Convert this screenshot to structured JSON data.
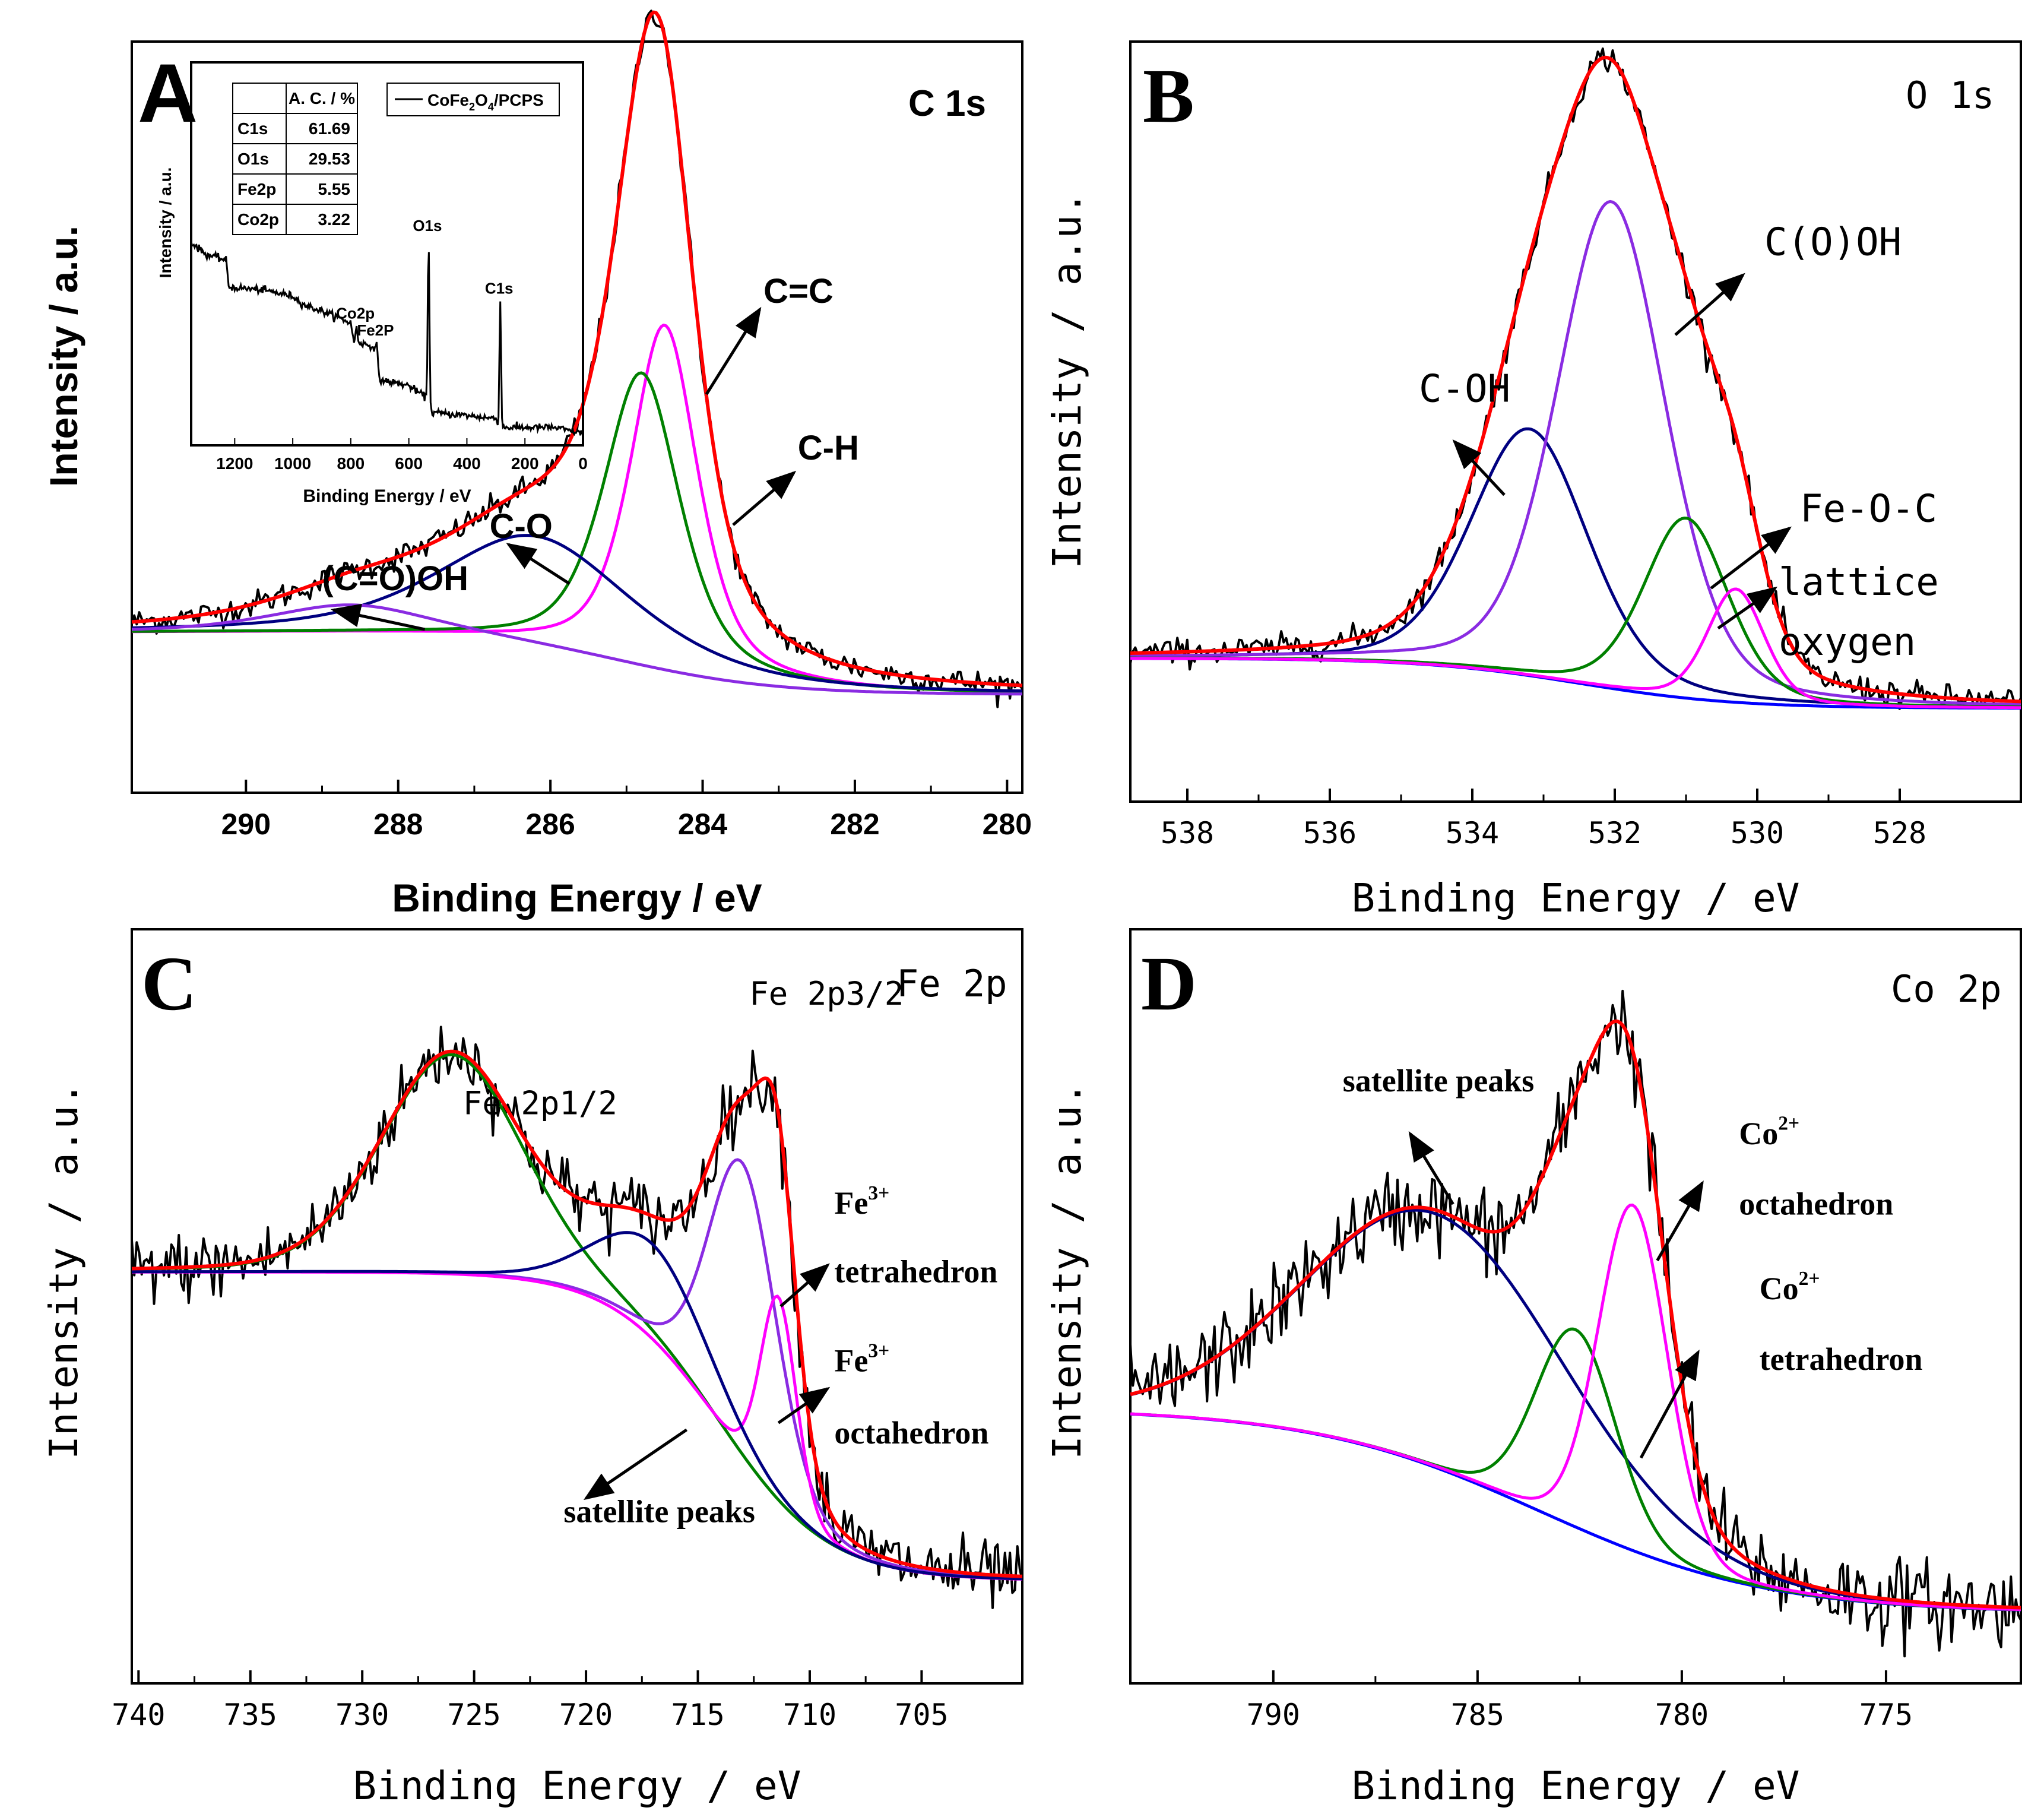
{
  "colors": {
    "black": "#000000",
    "red": "#ff0000",
    "navy": "#000080",
    "violet": "#8a2be2",
    "green": "#008000",
    "magenta": "#ff00ff",
    "blue": "#0000ff"
  },
  "chart_data": [
    {
      "id": "A",
      "type": "line",
      "panel_letter": "A",
      "element": "C 1s",
      "xlabel": "Binding Energy / eV",
      "ylabel": "Intensity / a.u.",
      "xlim": [
        291.5,
        279.8
      ],
      "ylim": [
        -0.15,
        1.0
      ],
      "xticks": [
        290,
        288,
        286,
        284,
        282,
        280
      ],
      "xtick_labels": [
        "290",
        "288",
        "286",
        "284",
        "282",
        "280"
      ],
      "baseline": {
        "left": 0.095,
        "right": 0.0,
        "center": 285.0,
        "width": 1.0
      },
      "measured_noise": 0.01,
      "components": [
        {
          "name": "C=C",
          "color": "magenta",
          "center": 284.5,
          "fwhm": 1.05,
          "height": 0.53,
          "eta": 0.6
        },
        {
          "name": "C-H",
          "color": "green",
          "center": 284.8,
          "fwhm": 1.2,
          "height": 0.45,
          "eta": 0.6
        },
        {
          "name": "C-O",
          "color": "navy",
          "center": 286.2,
          "fwhm": 3.0,
          "height": 0.17,
          "eta": 0.6
        },
        {
          "name": "(C=O)OH",
          "color": "violet",
          "center": 288.6,
          "fwhm": 2.6,
          "height": 0.045,
          "eta": 0.6
        }
      ],
      "annotations": [
        {
          "text": "C=C",
          "x": 283.2,
          "y": 0.6,
          "arrow_from": [
            283.95,
            0.46
          ],
          "arrow_to": [
            283.25,
            0.59
          ]
        },
        {
          "text": "C-H",
          "x": 282.75,
          "y": 0.36,
          "arrow_from": [
            283.6,
            0.26
          ],
          "arrow_to": [
            282.8,
            0.34
          ]
        },
        {
          "text": "C-O",
          "x": 286.8,
          "y": 0.24,
          "arrow_from": [
            285.75,
            0.17
          ],
          "arrow_to": [
            286.55,
            0.23
          ]
        },
        {
          "text": "(C=O)OH",
          "x": 289.0,
          "y": 0.16,
          "arrow_from": [
            287.65,
            0.1
          ],
          "arrow_to": [
            288.85,
            0.13
          ]
        }
      ],
      "inset": {
        "type": "line",
        "xlabel": "Binding Energy / eV",
        "ylabel": "Intensity / a.u.",
        "xlim": [
          1350,
          0
        ],
        "ylim": [
          0,
          1
        ],
        "xticks": [
          1200,
          1000,
          800,
          600,
          400,
          200,
          0
        ],
        "xtick_labels": [
          "1200",
          "1000",
          "800",
          "600",
          "400",
          "200",
          "0"
        ],
        "legend": "CoFe2O4/PCPS",
        "legend_main": "CoFe",
        "legend_sub1": "2",
        "legend_mid": "O",
        "legend_sub2": "4",
        "legend_tail": "/PCPS",
        "table": {
          "header": [
            "",
            "A. C. / %"
          ],
          "rows": [
            [
              "C1s",
              "61.69"
            ],
            [
              "O1s",
              "29.53"
            ],
            [
              "Fe2p",
              "5.55"
            ],
            [
              "Co2p",
              "3.22"
            ]
          ]
        },
        "peaks": [
          {
            "label": "O1s",
            "x": 532,
            "height": 0.55
          },
          {
            "label": "C1s",
            "x": 285,
            "height": 0.42
          },
          {
            "label": "Co2p",
            "x": 780,
            "height": 0.05
          },
          {
            "label": "Fe2P",
            "x": 711,
            "height": 0.06
          }
        ],
        "background_points": [
          [
            1350,
            0.64
          ],
          [
            1300,
            0.6
          ],
          [
            1230,
            0.58
          ],
          [
            1220,
            0.49
          ],
          [
            1100,
            0.48
          ],
          [
            1000,
            0.46
          ],
          [
            960,
            0.43
          ],
          [
            900,
            0.41
          ],
          [
            800,
            0.37
          ],
          [
            790,
            0.31
          ],
          [
            720,
            0.29
          ],
          [
            700,
            0.18
          ],
          [
            600,
            0.16
          ],
          [
            540,
            0.12
          ],
          [
            520,
            0.07
          ],
          [
            400,
            0.06
          ],
          [
            300,
            0.05
          ],
          [
            290,
            0.02
          ],
          [
            100,
            0.02
          ],
          [
            0,
            0.0
          ]
        ]
      }
    },
    {
      "id": "B",
      "type": "line",
      "panel_letter": "B",
      "element": "O 1s",
      "xlabel": "Binding Energy / eV",
      "ylabel": "Intensity / a.u.",
      "xlim": [
        538.8,
        526.3
      ],
      "ylim": [
        -0.14,
        1.0
      ],
      "xticks": [
        538,
        536,
        534,
        532,
        530,
        528
      ],
      "xtick_labels": [
        "538",
        "536",
        "534",
        "532",
        "530",
        "528"
      ],
      "baseline": {
        "left": 0.075,
        "right": 0.0,
        "center": 532.5,
        "width": 1.1
      },
      "measured_noise": 0.01,
      "components": [
        {
          "name": "C-OH",
          "color": "navy",
          "center": 533.2,
          "fwhm": 1.95,
          "height": 0.37,
          "eta": 0.3
        },
        {
          "name": "C(O)OH",
          "color": "violet",
          "center": 532.05,
          "fwhm": 1.8,
          "height": 0.73,
          "eta": 0.3
        },
        {
          "name": "Fe-O-C",
          "color": "green",
          "center": 531.0,
          "fwhm": 1.4,
          "height": 0.27,
          "eta": 0.3
        },
        {
          "name": "lattice oxygen",
          "color": "magenta",
          "center": 530.3,
          "fwhm": 0.95,
          "height": 0.17,
          "eta": 0.3
        }
      ],
      "annotations": [
        {
          "text": "C(O)OH",
          "x": 529.9,
          "y": 0.68,
          "arrow_from": [
            531.15,
            0.56
          ],
          "arrow_to": [
            530.2,
            0.65
          ]
        },
        {
          "text": "C-OH",
          "x": 534.75,
          "y": 0.46,
          "arrow_from": [
            533.55,
            0.32
          ],
          "arrow_to": [
            534.25,
            0.4
          ]
        },
        {
          "text": "Fe-O-C",
          "x": 529.4,
          "y": 0.28,
          "arrow_from": [
            530.65,
            0.18
          ],
          "arrow_to": [
            529.55,
            0.27
          ]
        },
        {
          "text": "lattice",
          "x": 529.7,
          "y": 0.17,
          "arrow_from": [
            530.55,
            0.12
          ],
          "arrow_to": [
            529.75,
            0.18
          ]
        },
        {
          "text": "oxygen",
          "x": 529.7,
          "y": 0.08
        }
      ]
    },
    {
      "id": "C",
      "type": "line",
      "panel_letter": "C",
      "element": "Fe 2p",
      "xlabel": "Binding Energy / eV",
      "ylabel": "Intensity / a.u.",
      "xlim": [
        740.3,
        700.5
      ],
      "ylim": [
        -0.15,
        0.95
      ],
      "xticks": [
        740,
        735,
        730,
        725,
        720,
        715,
        710,
        705
      ],
      "xtick_labels": [
        "740",
        "735",
        "730",
        "725",
        "720",
        "715",
        "710",
        "705"
      ],
      "baseline": {
        "left": 0.45,
        "right": 0.0,
        "center": 714.0,
        "width": 2.4
      },
      "measured_noise": 0.025,
      "components": [
        {
          "name": "Fe 2p1/2",
          "color": "green",
          "center": 726.0,
          "fwhm": 7.5,
          "height": 0.32,
          "eta": 0.2
        },
        {
          "name": "Fe3+ tetrahedron",
          "color": "violet",
          "center": 713.0,
          "fwhm": 3.6,
          "height": 0.43,
          "eta": 0.2
        },
        {
          "name": "Fe3+ octahedron",
          "color": "magenta",
          "center": 711.4,
          "fwhm": 1.9,
          "height": 0.3,
          "eta": 0.2
        },
        {
          "name": "satellite peaks",
          "color": "navy",
          "center": 717.0,
          "fwhm": 6.0,
          "height": 0.14,
          "eta": 0.2
        }
      ],
      "annotations": [
        {
          "text": "Fe 2p1/2",
          "x": 725.5,
          "y": 0.68
        },
        {
          "text": "Fe 2p3/2",
          "x": 712.7,
          "y": 0.84
        },
        {
          "text": "Fe",
          "x": 708.9,
          "y": 0.535,
          "sup": "3+",
          "arrow_from": [
            711.3,
            0.4
          ],
          "arrow_to": [
            709.2,
            0.46
          ]
        },
        {
          "text": "tetrahedron",
          "x": 708.9,
          "y": 0.435
        },
        {
          "text": "Fe",
          "x": 708.9,
          "y": 0.305,
          "sup": "3+",
          "arrow_from": [
            711.4,
            0.23
          ],
          "arrow_to": [
            709.2,
            0.28
          ]
        },
        {
          "text": "octahedron",
          "x": 708.9,
          "y": 0.2
        },
        {
          "text": "satellite peaks",
          "x": 721.0,
          "y": 0.085,
          "arrow_from": [
            715.5,
            0.22
          ],
          "arrow_to": [
            720.0,
            0.12
          ]
        }
      ]
    },
    {
      "id": "D",
      "type": "line",
      "panel_letter": "D",
      "element": "Co 2p",
      "xlabel": "Binding Energy / eV",
      "ylabel": "Intensity / a.u.",
      "xlim": [
        793.5,
        771.7
      ],
      "ylim": [
        -0.1,
        0.97
      ],
      "xticks": [
        790,
        785,
        780,
        775
      ],
      "xtick_labels": [
        "790",
        "785",
        "780",
        "775"
      ],
      "baseline": {
        "left": 0.29,
        "right": 0.0,
        "center": 783.5,
        "width": 2.8
      },
      "measured_noise": 0.03,
      "components": [
        {
          "name": "satellite peaks",
          "color": "navy",
          "center": 786.0,
          "fwhm": 7.5,
          "height": 0.36,
          "eta": 0.1
        },
        {
          "name": "Co2+ tetrahedron",
          "color": "green",
          "center": 782.6,
          "fwhm": 2.3,
          "height": 0.28,
          "eta": 0.1
        },
        {
          "name": "Co2+ octahedron",
          "color": "magenta",
          "center": 781.2,
          "fwhm": 2.0,
          "height": 0.49,
          "eta": 0.1
        }
      ],
      "annotations": [
        {
          "text": "satellite peaks",
          "x": 788.3,
          "y": 0.74,
          "arrow_from": [
            785.6,
            0.58
          ],
          "arrow_to": [
            786.65,
            0.68
          ]
        },
        {
          "text": "Co",
          "x": 778.6,
          "y": 0.665,
          "sup": "2+",
          "arrow_from": [
            780.6,
            0.5
          ],
          "arrow_to": [
            779.5,
            0.61
          ]
        },
        {
          "text": "octahedron",
          "x": 778.6,
          "y": 0.565
        },
        {
          "text": "Co",
          "x": 778.1,
          "y": 0.445,
          "sup": "2+",
          "arrow_from": [
            781.0,
            0.22
          ],
          "arrow_to": [
            779.6,
            0.37
          ]
        },
        {
          "text": "tetrahedron",
          "x": 778.1,
          "y": 0.345
        }
      ]
    }
  ]
}
